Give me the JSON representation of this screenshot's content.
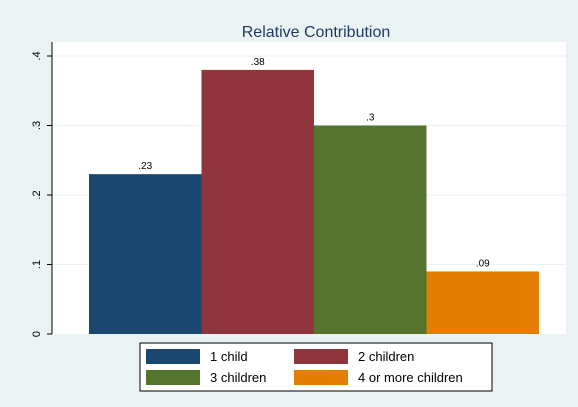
{
  "chart_data": {
    "type": "bar",
    "title": "Relative Contribution",
    "categories": [
      "1 child",
      "2 children",
      "3 children",
      "4 or more children"
    ],
    "values": [
      0.23,
      0.38,
      0.3,
      0.09
    ],
    "data_labels": [
      ".23",
      ".38",
      ".3",
      ".09"
    ],
    "colors": [
      "#1a476f",
      "#90353b",
      "#55752f",
      "#e37e00"
    ],
    "ylim": [
      0,
      0.4
    ],
    "yticks": [
      0,
      0.1,
      0.2,
      0.3,
      0.4
    ],
    "ytick_labels": [
      "0",
      ".1",
      ".2",
      ".3",
      ".4"
    ],
    "xlabel": "",
    "ylabel": "",
    "grid": true,
    "legend_position": "bottom",
    "legend_entries": [
      "1 child",
      "2 children",
      "3 children",
      "4 or more children"
    ]
  },
  "style": {
    "outer_background": "#eaf2f3",
    "plot_background": "#ffffff",
    "gridline_color": "#eaf2f3",
    "title_color": "#1e3a5f"
  }
}
